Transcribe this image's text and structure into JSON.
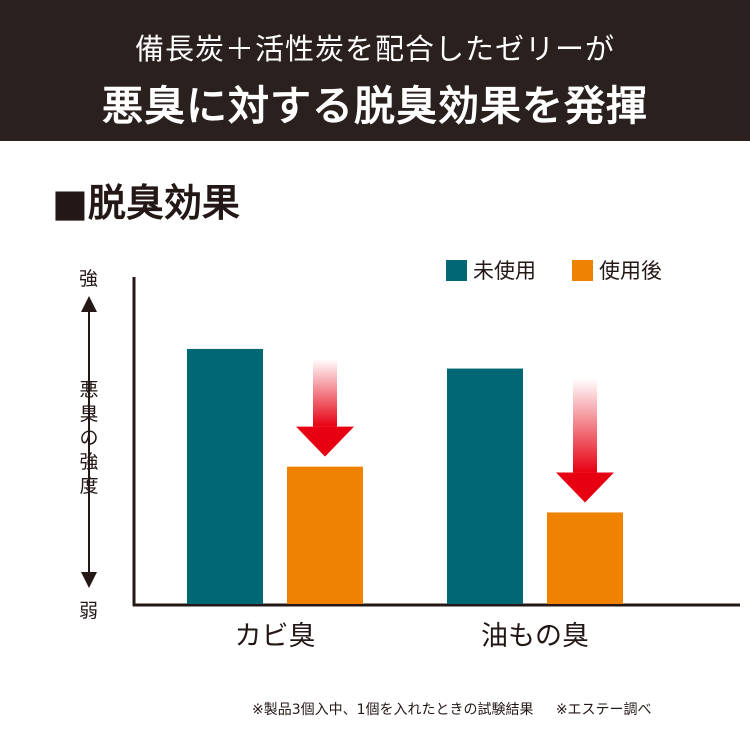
{
  "header": {
    "line1": "備長炭＋活性炭を配合したゼリーが",
    "line2": "悪臭に対する脱臭効果を発揮"
  },
  "section_title": "■脱臭効果",
  "colors": {
    "header_bg": "#2a201d",
    "unused": "#006775",
    "used": "#ef8200",
    "arrow": "#e60012"
  },
  "chart_data": {
    "type": "bar",
    "categories": [
      "カビ臭",
      "油もの臭"
    ],
    "series": [
      {
        "name": "未使用",
        "values": [
          78,
          72
        ],
        "color": "#006775"
      },
      {
        "name": "使用後",
        "values": [
          42,
          28
        ],
        "color": "#ef8200"
      }
    ],
    "ylabel": "悪臭の強度",
    "ytick_top": "強",
    "ytick_bottom": "弱",
    "ylim": [
      0,
      100
    ],
    "legend": "top-right",
    "grid": false,
    "annotations": "red downward arrows from 未使用 to 使用後"
  },
  "footnote": {
    "test": "※製品3個入中、1個を入れたときの試験結果",
    "source": "※エステー調べ"
  }
}
